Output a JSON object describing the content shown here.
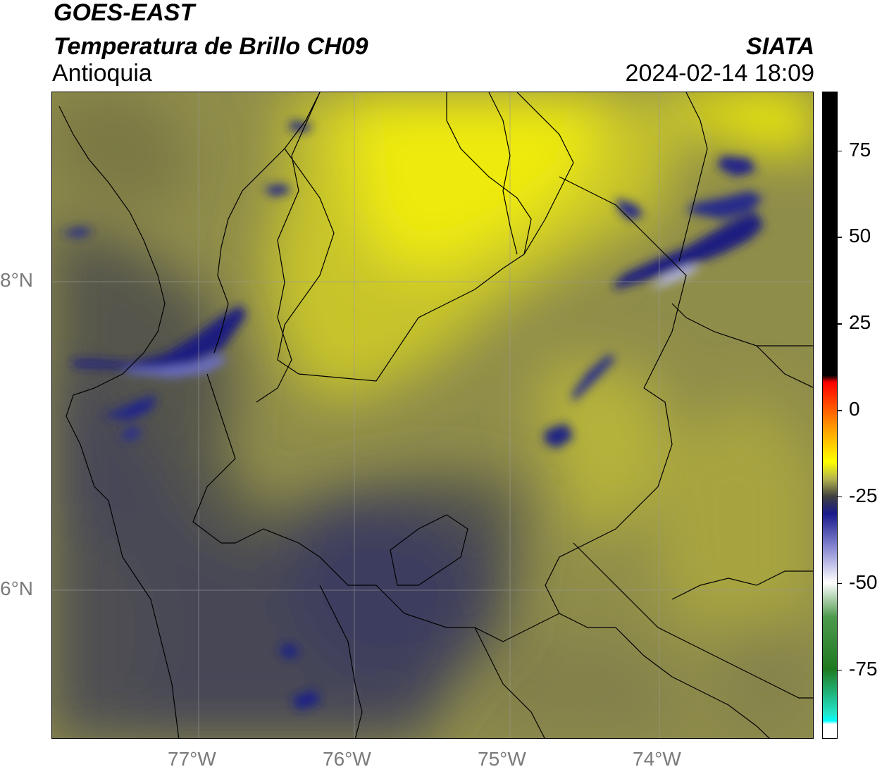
{
  "header": {
    "title_line1": "GOES-EAST",
    "title_line2": "Temperatura de Brillo CH09",
    "region": "Antioquia",
    "agency": "SIATA",
    "timestamp": "2024-02-14 18:09"
  },
  "map": {
    "lat_labels": [
      "8°N",
      "6°N"
    ],
    "lon_labels": [
      "77°W",
      "76°W",
      "75°W",
      "74°W"
    ],
    "extent": {
      "lon_min": -77.95,
      "lon_max": -73.05,
      "lat_min": 4.95,
      "lat_max": 9.2
    },
    "gridlines": true,
    "gridlines_lat": [
      8,
      6
    ],
    "gridlines_lon": [
      -77,
      -76,
      -75,
      -74
    ],
    "colors": {
      "warm_yellow": "#f7f400",
      "olive_mid": "#b9b536",
      "olive_dark": "#7c7a44",
      "slate_gray": "#4a4a56",
      "cold_navy": "#1a1f7a",
      "coldest_lavender": "#c8c9ee",
      "border_line": "#000000"
    }
  },
  "colorbar": {
    "labels": [
      "75",
      "50",
      "25",
      "0",
      "-25",
      "-50",
      "-75"
    ],
    "tick_values": [
      75,
      50,
      25,
      0,
      -25,
      -50,
      -75
    ],
    "range": [
      -95,
      92
    ],
    "color_stops": [
      {
        "value": 92,
        "color": "#000000"
      },
      {
        "value": 10,
        "color": "#000000"
      },
      {
        "value": 8,
        "color": "#ff0000"
      },
      {
        "value": -5,
        "color": "#ff9900"
      },
      {
        "value": -15,
        "color": "#ffff00"
      },
      {
        "value": -20,
        "color": "#b3b34d"
      },
      {
        "value": -25,
        "color": "#404040"
      },
      {
        "value": -30,
        "color": "#1a1a8c"
      },
      {
        "value": -40,
        "color": "#8a8ad4"
      },
      {
        "value": -50,
        "color": "#ffffff"
      },
      {
        "value": -60,
        "color": "#4d994d"
      },
      {
        "value": -75,
        "color": "#1f7a1f"
      },
      {
        "value": -88,
        "color": "#22e6cc"
      },
      {
        "value": -90,
        "color": "#00ffff"
      },
      {
        "value": -91,
        "color": "#ffffff"
      },
      {
        "value": -95,
        "color": "#ffffff"
      }
    ]
  }
}
